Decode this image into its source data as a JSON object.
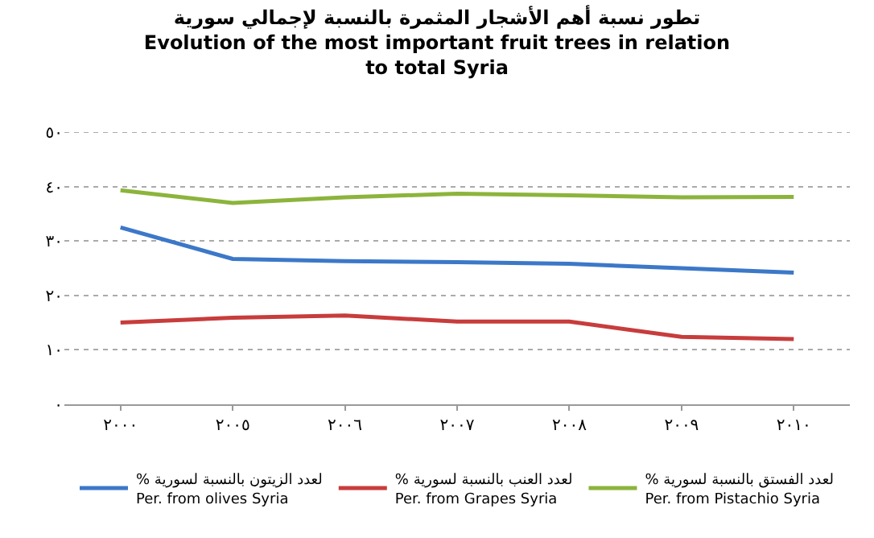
{
  "chart_data": {
    "type": "line",
    "title": "تطور نسبة أهم الأشجار المثمرة بالنسبة لإجمالي سورية\nEvolution of the most important fruit trees in relation\nto total Syria",
    "categories": [
      "٢٠٠٠",
      "٢٠٠٥",
      "٢٠٠٦",
      "٢٠٠٧",
      "٢٠٠٨",
      "٢٠٠٩",
      "٢٠١٠"
    ],
    "series": [
      {
        "name": "% لعدد الزيتون بالنسبة لسورية\nPer. from olives Syria",
        "color": "#3c78c8",
        "values": [
          32.5,
          26.7,
          26.3,
          26.1,
          25.8,
          25.0,
          24.2
        ]
      },
      {
        "name": "% لعدد العنب بالنسبة لسورية\nPer. from Grapes Syria",
        "color": "#c83c3c",
        "values": [
          15.0,
          15.9,
          16.3,
          15.2,
          15.2,
          12.4,
          12.0
        ]
      },
      {
        "name": "% لعدد الفستق بالنسبة لسورية\nPer. from Pistachio Syria",
        "color": "#8cb43c",
        "values": [
          39.3,
          37.0,
          38.0,
          38.7,
          38.4,
          38.0,
          38.1
        ]
      }
    ],
    "ylim": [
      0,
      50
    ],
    "yticks": [
      {
        "value": 0,
        "label": "٠"
      },
      {
        "value": 10,
        "label": "١٠"
      },
      {
        "value": 20,
        "label": "٢٠"
      },
      {
        "value": 30,
        "label": "٣٠"
      },
      {
        "value": 40,
        "label": "٤٠"
      },
      {
        "value": 50,
        "label": "٥٠"
      }
    ],
    "grid": "y",
    "legend": "bottom",
    "marker": "none",
    "line_style": "solid"
  }
}
